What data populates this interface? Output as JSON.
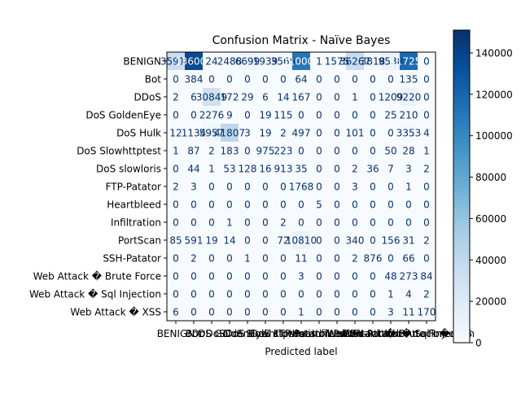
{
  "chart_data": {
    "type": "heatmap",
    "title": "Confusion Matrix - Naïve Bayes",
    "xlabel": "Predicted label",
    "ylabel": "",
    "labels": [
      "BENIGN",
      "Bot",
      "DDoS",
      "DoS GoldenEye",
      "DoS Hulk",
      "DoS Slowhttptest",
      "DoS slowloris",
      "FTP-Patator",
      "Heartbleed",
      "Infiltration",
      "PortScan",
      "SSH-Patator",
      "Web Attack � Brute Force",
      "Web Attack � Sql Injection",
      "Web Attack � XSS"
    ],
    "matrix": [
      [
        35916,
        136000,
        24,
        2488,
        6699,
        1939,
        3565,
        110000,
        1,
        1575,
        36267,
        3818,
        9538,
        117250,
        0
      ],
      [
        0,
        384,
        0,
        0,
        0,
        0,
        0,
        64,
        0,
        0,
        0,
        0,
        0,
        135,
        0
      ],
      [
        2,
        6,
        30849,
        172,
        29,
        6,
        14,
        167,
        0,
        0,
        1,
        0,
        1209,
        9220,
        0
      ],
      [
        0,
        0,
        2276,
        9,
        0,
        19,
        115,
        0,
        0,
        0,
        0,
        0,
        25,
        210,
        0
      ],
      [
        12,
        1134,
        5957,
        41807,
        3,
        19,
        2,
        497,
        0,
        0,
        101,
        0,
        0,
        3353,
        4
      ],
      [
        1,
        87,
        2,
        183,
        0,
        975,
        223,
        0,
        0,
        0,
        0,
        0,
        50,
        28,
        1
      ],
      [
        0,
        44,
        1,
        53,
        128,
        16,
        913,
        35,
        0,
        0,
        2,
        36,
        7,
        3,
        2
      ],
      [
        2,
        3,
        0,
        0,
        0,
        0,
        0,
        1768,
        0,
        0,
        3,
        0,
        0,
        1,
        0
      ],
      [
        0,
        0,
        0,
        0,
        0,
        0,
        0,
        0,
        5,
        0,
        0,
        0,
        0,
        0,
        0
      ],
      [
        0,
        0,
        0,
        1,
        0,
        0,
        2,
        0,
        0,
        0,
        0,
        0,
        0,
        0,
        0
      ],
      [
        85,
        591,
        19,
        14,
        0,
        0,
        72,
        10810,
        0,
        0,
        340,
        0,
        156,
        31,
        2
      ],
      [
        0,
        2,
        0,
        0,
        1,
        0,
        0,
        11,
        0,
        0,
        2,
        876,
        0,
        66,
        0
      ],
      [
        0,
        0,
        0,
        0,
        0,
        0,
        0,
        3,
        0,
        0,
        0,
        0,
        48,
        273,
        84
      ],
      [
        0,
        0,
        0,
        0,
        0,
        0,
        0,
        0,
        0,
        0,
        0,
        0,
        1,
        4,
        2
      ],
      [
        6,
        0,
        0,
        0,
        0,
        0,
        0,
        1,
        0,
        0,
        0,
        0,
        3,
        11,
        170
      ]
    ],
    "cell_text": [
      [
        "35916",
        "136000",
        "24",
        "2488",
        "6699",
        "1939",
        "3565",
        "110000",
        "1",
        "1575",
        "36267",
        "3818",
        "9538",
        "117250",
        "0"
      ],
      [
        "0",
        "384",
        "0",
        "0",
        "0",
        "0",
        "0",
        "64",
        "0",
        "0",
        "0",
        "0",
        "0",
        "135",
        "0"
      ],
      [
        "2",
        "6",
        "30849",
        "172",
        "29",
        "6",
        "14",
        "167",
        "0",
        "0",
        "1",
        "0",
        "1209",
        "9220",
        "0"
      ],
      [
        "0",
        "0",
        "2276",
        "9",
        "0",
        "19",
        "115",
        "0",
        "0",
        "0",
        "0",
        "0",
        "25",
        "210",
        "0"
      ],
      [
        "12",
        "1134",
        "5957",
        "41807",
        "3",
        "19",
        "2",
        "497",
        "0",
        "0",
        "101",
        "0",
        "0",
        "3353",
        "4"
      ],
      [
        "1",
        "87",
        "2",
        "183",
        "0",
        "975",
        "223",
        "0",
        "0",
        "0",
        "0",
        "0",
        "50",
        "28",
        "1"
      ],
      [
        "0",
        "44",
        "1",
        "53",
        "128",
        "16",
        "913",
        "35",
        "0",
        "0",
        "2",
        "36",
        "7",
        "3",
        "2"
      ],
      [
        "2",
        "3",
        "0",
        "0",
        "0",
        "0",
        "0",
        "1768",
        "0",
        "0",
        "3",
        "0",
        "0",
        "1",
        "0"
      ],
      [
        "0",
        "0",
        "0",
        "0",
        "0",
        "0",
        "0",
        "0",
        "5",
        "0",
        "0",
        "0",
        "0",
        "0",
        "0"
      ],
      [
        "0",
        "0",
        "0",
        "1",
        "0",
        "0",
        "2",
        "0",
        "0",
        "0",
        "0",
        "0",
        "0",
        "0",
        "0"
      ],
      [
        "85",
        "591",
        "19",
        "14",
        "0",
        "0",
        "72",
        "10810",
        "0",
        "0",
        "340",
        "0",
        "156",
        "31",
        "2"
      ],
      [
        "0",
        "2",
        "0",
        "0",
        "1",
        "0",
        "0",
        "11",
        "0",
        "0",
        "2",
        "876",
        "0",
        "66",
        "0"
      ],
      [
        "0",
        "0",
        "0",
        "0",
        "0",
        "0",
        "0",
        "3",
        "0",
        "0",
        "0",
        "0",
        "48",
        "273",
        "84"
      ],
      [
        "0",
        "0",
        "0",
        "0",
        "0",
        "0",
        "0",
        "0",
        "0",
        "0",
        "0",
        "0",
        "1",
        "4",
        "2"
      ],
      [
        "6",
        "0",
        "0",
        "0",
        "0",
        "0",
        "0",
        "1",
        "0",
        "0",
        "0",
        "0",
        "3",
        "11",
        "170"
      ]
    ],
    "colorbar": {
      "ticks": [
        0,
        20000,
        40000,
        60000,
        80000,
        100000,
        120000,
        140000
      ],
      "tick_labels": [
        "0",
        "20000",
        "40000",
        "60000",
        "80000",
        "100000",
        "120000",
        "140000"
      ],
      "range": [
        0,
        151000
      ]
    },
    "colormap": "Blues",
    "grid": false
  }
}
